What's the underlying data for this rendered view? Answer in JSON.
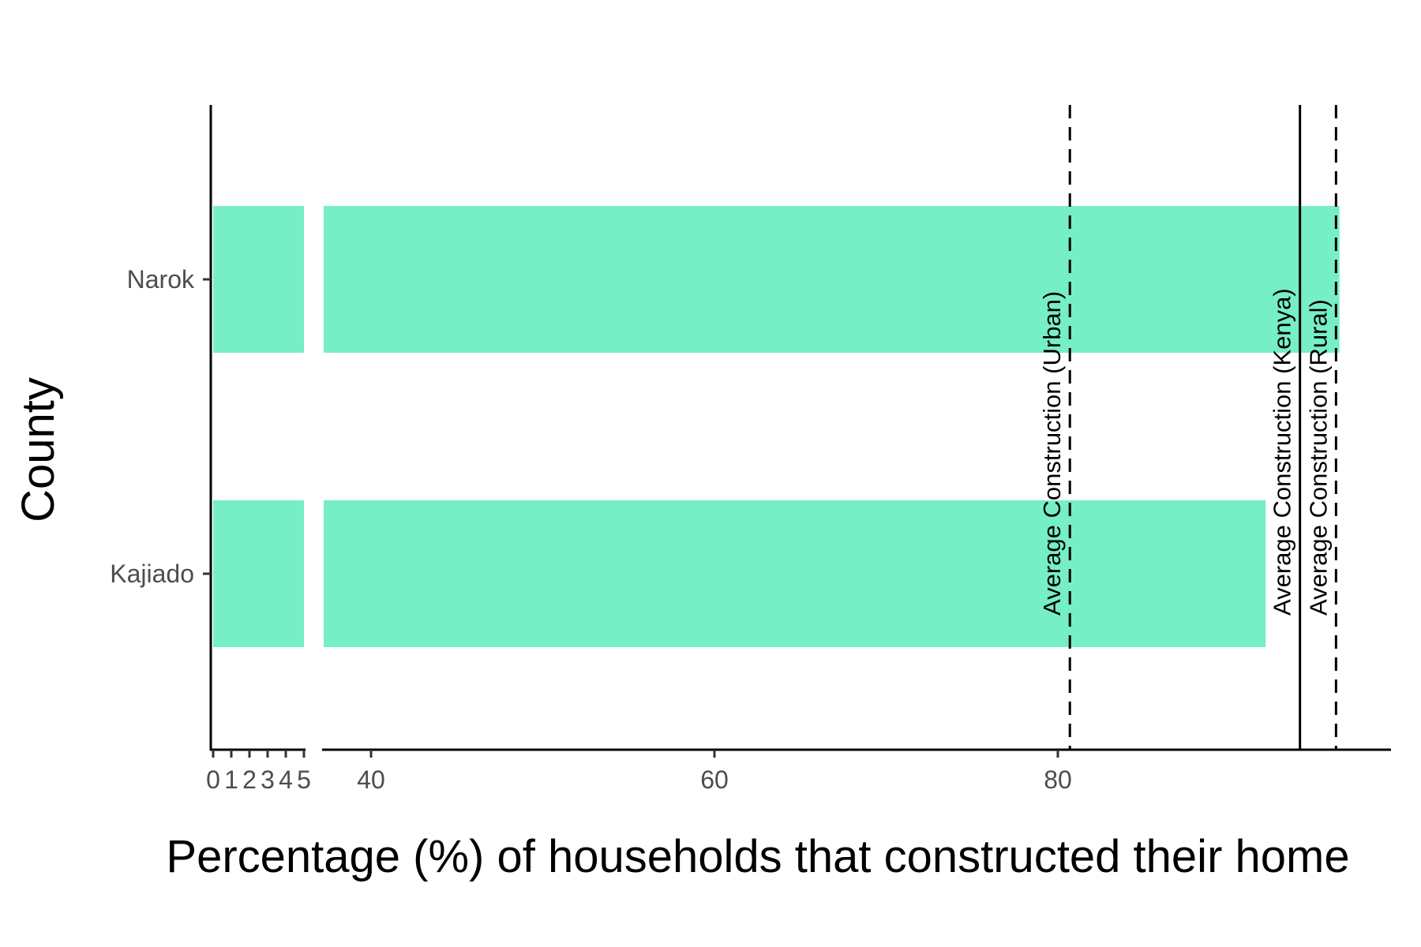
{
  "chart_data": {
    "type": "bar",
    "orientation": "horizontal",
    "categories": [
      "Kajiado",
      "Narok"
    ],
    "values": [
      92.1,
      96.4
    ],
    "xlabel": "Percentage (%) of households that constructed their home",
    "ylabel": "County",
    "x_axis_break": {
      "lower_range": [
        0,
        5
      ],
      "upper_range": [
        37,
        98
      ]
    },
    "x_ticks_lower": [
      "0",
      "1",
      "2",
      "3",
      "4",
      "5"
    ],
    "x_ticks_upper": [
      40,
      60,
      80
    ],
    "reference_lines": [
      {
        "label": "Average Construction (Urban)",
        "value": 80.7,
        "style": "dashed"
      },
      {
        "label": "Average Construction (Kenya)",
        "value": 94.1,
        "style": "solid"
      },
      {
        "label": "Average Construction (Rural)",
        "value": 96.2,
        "style": "dashed"
      }
    ],
    "bar_color": "#76EEC6",
    "grid": false,
    "legend": "none"
  }
}
